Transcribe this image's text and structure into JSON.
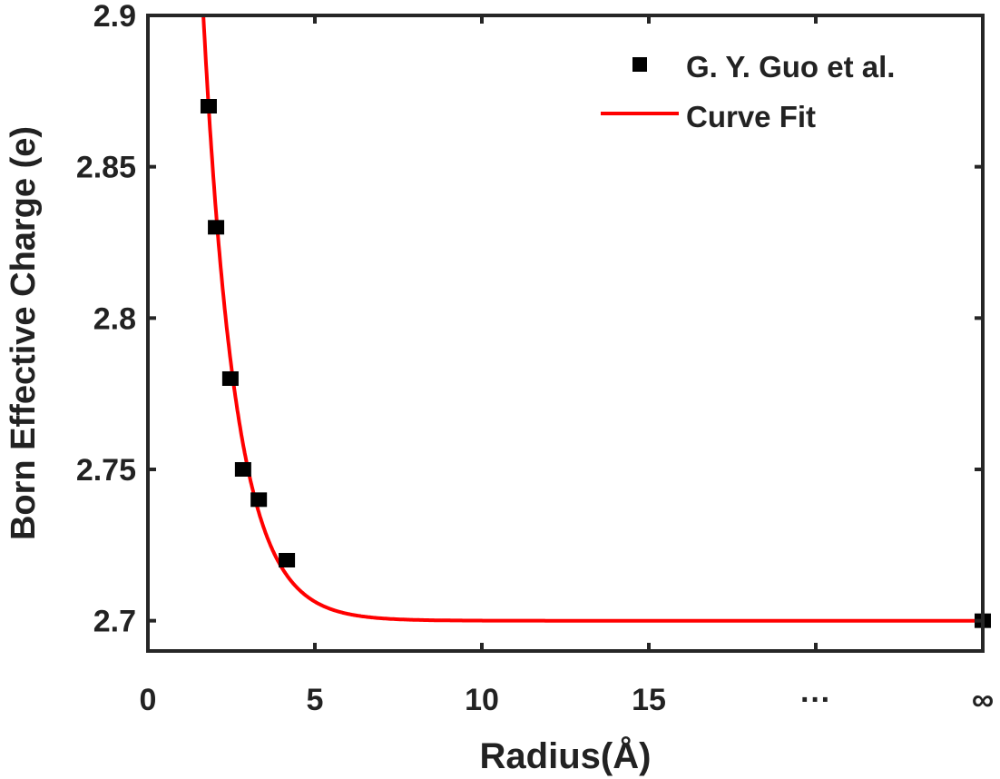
{
  "chart_data": {
    "type": "scatter",
    "title": "",
    "xlabel": "Radius(Å)",
    "ylabel": "Born Effective Charge (e)",
    "xlim": [
      0,
      25
    ],
    "ylim": [
      2.69,
      2.9
    ],
    "xticks": [
      {
        "value": 0,
        "label": "0"
      },
      {
        "value": 5,
        "label": "5"
      },
      {
        "value": 10,
        "label": "10"
      },
      {
        "value": 15,
        "label": "15"
      },
      {
        "value": 20,
        "label": "···"
      },
      {
        "value": 25,
        "label": "∞"
      }
    ],
    "yticks": [
      {
        "value": 2.7,
        "label": "2.7"
      },
      {
        "value": 2.75,
        "label": "2.75"
      },
      {
        "value": 2.8,
        "label": "2.8"
      },
      {
        "value": 2.85,
        "label": "2.85"
      },
      {
        "value": 2.9,
        "label": "2.9"
      }
    ],
    "grid": false,
    "legend": {
      "placement": "top-right",
      "entries": [
        "G. Y. Guo et al.",
        "Curve Fit"
      ]
    },
    "series": [
      {
        "name": "G. Y. Guo et al.",
        "kind": "markers",
        "marker": "square",
        "color": "#000000",
        "x": [
          1.82,
          2.04,
          2.47,
          2.85,
          3.32,
          4.16,
          25
        ],
        "x_labels_note": "last point plotted at ∞",
        "y": [
          2.87,
          2.83,
          2.78,
          2.75,
          2.74,
          2.72,
          2.7
        ]
      },
      {
        "name": "Curve Fit",
        "kind": "line",
        "color": "#ff0000",
        "model": "y = c + A*exp(-k*x)",
        "params": {
          "c": 2.7,
          "A": 1.117,
          "k": 1.036
        },
        "x_range": [
          1.66,
          25
        ]
      }
    ]
  }
}
